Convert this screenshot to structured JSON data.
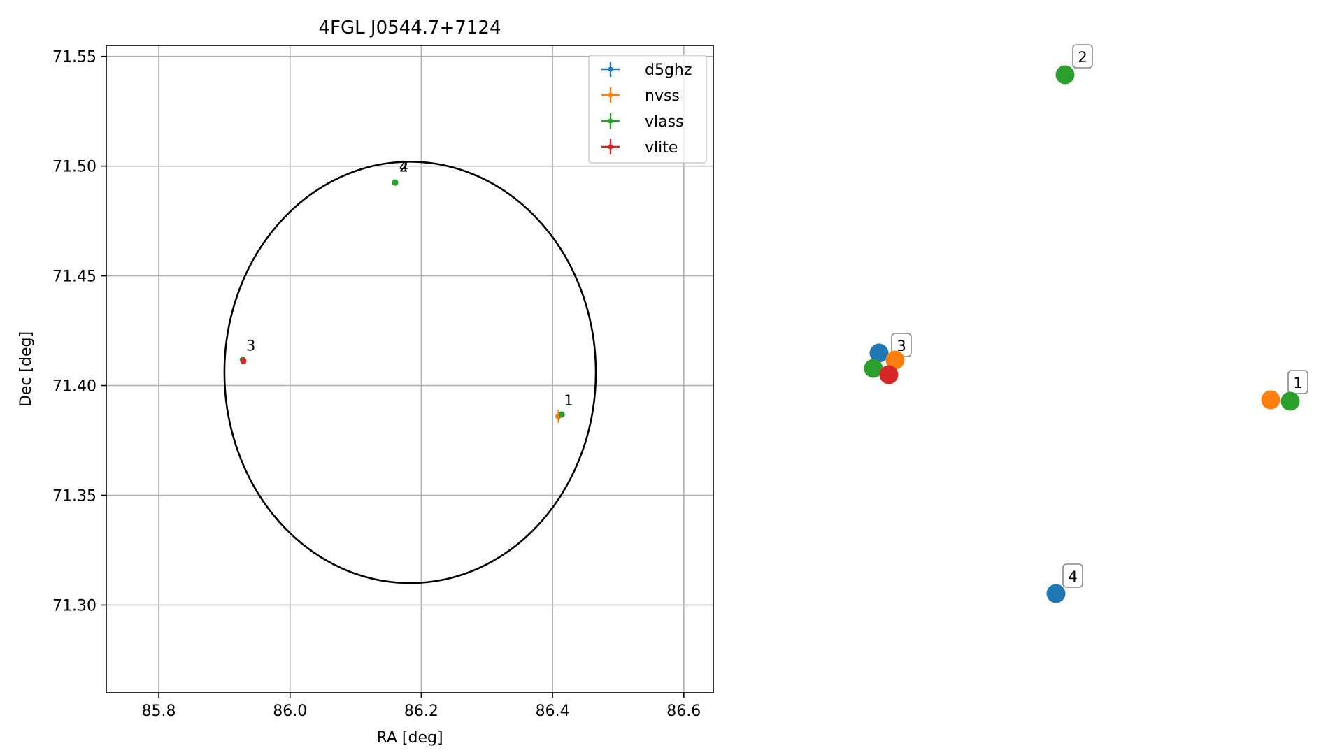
{
  "chart_data": [
    {
      "type": "scatter",
      "title": "4FGL J0544.7+7124",
      "xlabel": "RA [deg]",
      "ylabel": "Dec [deg]",
      "xlim": [
        85.72,
        86.645
      ],
      "ylim": [
        71.26,
        71.555
      ],
      "x_ticks": [
        "85.8",
        "86.0",
        "86.2",
        "86.4",
        "86.6"
      ],
      "x_tick_values": [
        85.8,
        86.0,
        86.2,
        86.4,
        86.6
      ],
      "y_ticks": [
        "71.30",
        "71.35",
        "71.40",
        "71.45",
        "71.50",
        "71.55"
      ],
      "y_tick_values": [
        71.3,
        71.35,
        71.4,
        71.45,
        71.5,
        71.55
      ],
      "grid": true,
      "legend_position": "top-right",
      "error_ellipse": {
        "ra_center": 86.183,
        "dec_center": 71.406,
        "ra_semi_axis": 0.283,
        "dec_semi_axis": 0.096,
        "color": "#000000"
      },
      "series": [
        {
          "name": "d5ghz",
          "color": "#1f77b4",
          "points": [
            {
              "ra": 86.16,
              "dec": 71.4925
            }
          ]
        },
        {
          "name": "nvss",
          "color": "#ff7f0e",
          "points": [
            {
              "ra": 86.409,
              "dec": 71.386,
              "ra_err": 0.003,
              "dec_err": 0.003
            }
          ]
        },
        {
          "name": "vlass",
          "color": "#2ca02c",
          "points": [
            {
              "ra": 86.414,
              "dec": 71.3868
            },
            {
              "ra": 86.16,
              "dec": 71.4925
            },
            {
              "ra": 85.928,
              "dec": 71.4118
            }
          ]
        },
        {
          "name": "vlite",
          "color": "#d62728",
          "points": [
            {
              "ra": 85.929,
              "dec": 71.4112
            }
          ]
        }
      ],
      "source_labels": [
        {
          "text": "1",
          "ra": 86.414,
          "dec": 71.39
        },
        {
          "text": "2",
          "ra": 86.163,
          "dec": 71.4965
        },
        {
          "text": "4",
          "ra": 86.163,
          "dec": 71.4965
        },
        {
          "text": "3",
          "ra": 85.93,
          "dec": 71.415
        }
      ]
    },
    {
      "type": "scatter",
      "axes_visible": false,
      "markers": [
        {
          "group": "2",
          "color": "#2ca02c"
        },
        {
          "group": "3",
          "color": "#1f77b4"
        },
        {
          "group": "3",
          "color": "#ff7f0e"
        },
        {
          "group": "3",
          "color": "#2ca02c"
        },
        {
          "group": "3",
          "color": "#d62728"
        },
        {
          "group": "1",
          "color": "#ff7f0e"
        },
        {
          "group": "1",
          "color": "#2ca02c"
        },
        {
          "group": "4",
          "color": "#1f77b4"
        }
      ],
      "labels": [
        "1",
        "2",
        "3",
        "4"
      ]
    }
  ]
}
